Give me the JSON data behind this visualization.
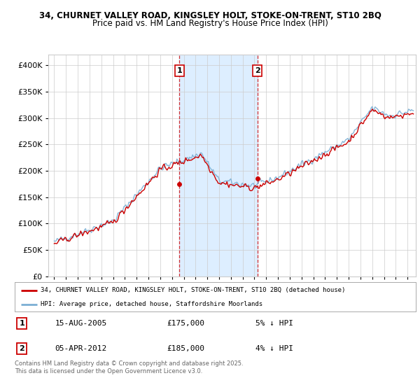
{
  "title_line1": "34, CHURNET VALLEY ROAD, KINGSLEY HOLT, STOKE-ON-TRENT, ST10 2BQ",
  "title_line2": "Price paid vs. HM Land Registry's House Price Index (HPI)",
  "legend_label1": "34, CHURNET VALLEY ROAD, KINGSLEY HOLT, STOKE-ON-TRENT, ST10 2BQ (detached house)",
  "legend_label2": "HPI: Average price, detached house, Staffordshire Moorlands",
  "footnote": "Contains HM Land Registry data © Crown copyright and database right 2025.\nThis data is licensed under the Open Government Licence v3.0.",
  "annotation1": {
    "label": "1",
    "date": "15-AUG-2005",
    "price": "£175,000",
    "note": "5% ↓ HPI"
  },
  "annotation2": {
    "label": "2",
    "date": "05-APR-2012",
    "price": "£185,000",
    "note": "4% ↓ HPI"
  },
  "sale1_year": 2005.625,
  "sale1_price": 175000,
  "sale2_year": 2012.25,
  "sale2_price": 185000,
  "hpi_line_color": "#7bafd4",
  "price_line_color": "#cc0000",
  "shading_color": "#ddeeff",
  "ylim": [
    0,
    420000
  ],
  "xlim_start": 1994.5,
  "xlim_end": 2025.7,
  "background_color": "#ffffff",
  "grid_color": "#cccccc",
  "title_fontsize": 8.5,
  "tick_fontsize": 7.5
}
